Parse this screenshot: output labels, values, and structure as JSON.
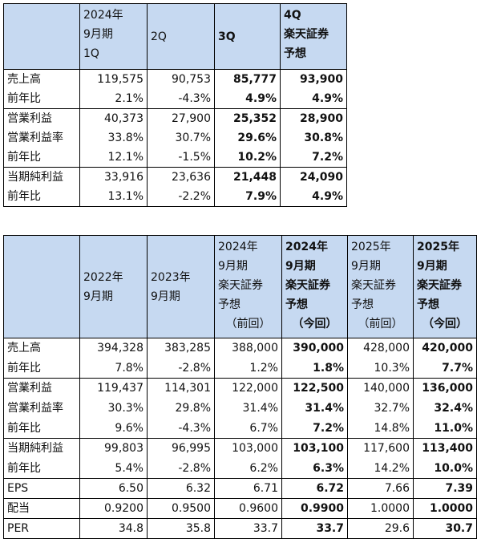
{
  "table1": {
    "header": {
      "col1": [
        "2024年",
        "9月期",
        "1Q"
      ],
      "col2": [
        "2Q"
      ],
      "col3": [
        "3Q"
      ],
      "col4": [
        "4Q",
        "楽天証券",
        "予想"
      ]
    },
    "rows": [
      {
        "label": "売上高",
        "values": [
          "119,575",
          "90,753",
          "85,777",
          "93,900"
        ]
      },
      {
        "label": "前年比",
        "values": [
          "2.1%",
          "-4.3%",
          "4.9%",
          "4.9%"
        ]
      },
      {
        "label": "営業利益",
        "values": [
          "40,373",
          "27,900",
          "25,352",
          "28,900"
        ]
      },
      {
        "label": "営業利益率",
        "values": [
          "33.8%",
          "30.7%",
          "29.6%",
          "30.8%"
        ]
      },
      {
        "label": "前年比",
        "values": [
          "12.1%",
          "-1.5%",
          "10.2%",
          "7.2%"
        ]
      },
      {
        "label": "当期純利益",
        "values": [
          "33,916",
          "23,636",
          "21,448",
          "24,090"
        ]
      },
      {
        "label": "前年比",
        "values": [
          "13.1%",
          "-2.2%",
          "7.9%",
          "4.9%"
        ]
      }
    ]
  },
  "table2": {
    "header": {
      "col1": [
        "2022年",
        "9月期"
      ],
      "col2": [
        "2023年",
        "9月期"
      ],
      "col3": [
        "2024年",
        "9月期",
        "楽天証券",
        "予想",
        "（前回）"
      ],
      "col4": [
        "2024年",
        "9月期",
        "楽天証券",
        "予想",
        "（今回）"
      ],
      "col5": [
        "2025年",
        "9月期",
        "楽天証券",
        "予想",
        "（前回）"
      ],
      "col6": [
        "2025年",
        "9月期",
        "楽天証券",
        "予想",
        "（今回）"
      ]
    },
    "rows": [
      {
        "label": "売上高",
        "values": [
          "394,328",
          "383,285",
          "388,000",
          "390,000",
          "428,000",
          "420,000"
        ]
      },
      {
        "label": "前年比",
        "values": [
          "7.8%",
          "-2.8%",
          "1.2%",
          "1.8%",
          "10.3%",
          "7.7%"
        ]
      },
      {
        "label": "営業利益",
        "values": [
          "119,437",
          "114,301",
          "122,000",
          "122,500",
          "140,000",
          "136,000"
        ]
      },
      {
        "label": "営業利益率",
        "values": [
          "30.3%",
          "29.8%",
          "31.4%",
          "31.4%",
          "32.7%",
          "32.4%"
        ]
      },
      {
        "label": "前年比",
        "values": [
          "9.6%",
          "-4.3%",
          "6.7%",
          "7.2%",
          "14.8%",
          "11.0%"
        ]
      },
      {
        "label": "当期純利益",
        "values": [
          "99,803",
          "96,995",
          "103,000",
          "103,100",
          "117,600",
          "113,400"
        ]
      },
      {
        "label": "前年比",
        "values": [
          "5.4%",
          "-2.8%",
          "6.2%",
          "6.3%",
          "14.2%",
          "10.0%"
        ]
      },
      {
        "label": "EPS",
        "values": [
          "6.50",
          "6.32",
          "6.71",
          "6.72",
          "7.66",
          "7.39"
        ]
      },
      {
        "label": "配当",
        "values": [
          "0.9200",
          "0.9500",
          "0.9600",
          "0.9900",
          "1.0000",
          "1.0000"
        ]
      },
      {
        "label": "PER",
        "values": [
          "34.8",
          "35.8",
          "33.7",
          "33.7",
          "29.6",
          "30.7"
        ]
      }
    ]
  },
  "colors": {
    "header_bg": "#c6d9f1",
    "border": "#000000"
  }
}
